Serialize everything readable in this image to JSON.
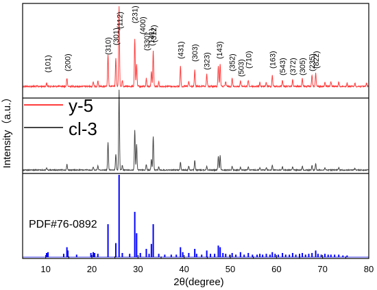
{
  "chart_data": {
    "type": "line",
    "xlabel": "2θ(degree)",
    "ylabel": "Intensity（a.u.）",
    "xlim": [
      5,
      80
    ],
    "xticks": [
      10,
      20,
      30,
      40,
      50,
      60,
      70,
      80
    ],
    "grid": false,
    "legend": {
      "position": "center-left",
      "entries": [
        "y-5",
        "cl-3"
      ]
    },
    "series": [
      {
        "name": "y-5",
        "color": "#ff3b3b",
        "peaks": [
          [
            10.2,
            0.04
          ],
          [
            14.6,
            0.1
          ],
          [
            20.3,
            0.06
          ],
          [
            21.3,
            0.07
          ],
          [
            23.5,
            0.4
          ],
          [
            25.2,
            0.36
          ],
          [
            25.9,
            1.0
          ],
          [
            26.6,
            0.08
          ],
          [
            29.3,
            0.6
          ],
          [
            29.7,
            0.28
          ],
          [
            31.8,
            0.1
          ],
          [
            32.9,
            0.18
          ],
          [
            33.3,
            0.44
          ],
          [
            34.5,
            0.06
          ],
          [
            39.2,
            0.25
          ],
          [
            41.0,
            0.06
          ],
          [
            42.3,
            0.2
          ],
          [
            44.9,
            0.15
          ],
          [
            47.4,
            0.26
          ],
          [
            47.8,
            0.28
          ],
          [
            49.0,
            0.06
          ],
          [
            50.4,
            0.1
          ],
          [
            52.2,
            0.07
          ],
          [
            53.9,
            0.08
          ],
          [
            56.4,
            0.05
          ],
          [
            57.8,
            0.05
          ],
          [
            59.1,
            0.14
          ],
          [
            61.3,
            0.08
          ],
          [
            63.5,
            0.08
          ],
          [
            65.6,
            0.1
          ],
          [
            67.7,
            0.14
          ],
          [
            68.5,
            0.16
          ],
          [
            70.5,
            0.06
          ],
          [
            71.8,
            0.06
          ],
          [
            73.5,
            0.05
          ],
          [
            75.3,
            0.04
          ],
          [
            77.0,
            0.04
          ],
          [
            79.5,
            0.04
          ]
        ],
        "labels": [
          {
            "hkl": "101",
            "x": 10.4
          },
          {
            "hkl": "200",
            "x": 14.7
          },
          {
            "hkl": "310",
            "x": 23.5
          },
          {
            "hkl": "301",
            "x": 25.2
          },
          {
            "hkl": "112",
            "x": 26.0
          },
          {
            "hkl": "231",
            "x": 29.3
          },
          {
            "hkl": "400",
            "x": 31.0
          },
          {
            "hkl": "330",
            "x": 31.9
          },
          {
            "hkl": "141",
            "x": 32.9
          },
          {
            "hkl": "312",
            "x": 33.4
          },
          {
            "hkl": "431",
            "x": 39.2
          },
          {
            "hkl": "303",
            "x": 42.3
          },
          {
            "hkl": "323",
            "x": 44.9
          },
          {
            "hkl": "143",
            "x": 47.6
          },
          {
            "hkl": "352",
            "x": 50.4
          },
          {
            "hkl": "503",
            "x": 52.3
          },
          {
            "hkl": "710",
            "x": 53.9
          },
          {
            "hkl": "163",
            "x": 59.1
          },
          {
            "hkl": "543",
            "x": 61.3
          },
          {
            "hkl": "372",
            "x": 63.5
          },
          {
            "hkl": "305",
            "x": 65.6
          },
          {
            "hkl": "235",
            "x": 67.7
          },
          {
            "hkl": "822",
            "x": 68.6
          }
        ]
      },
      {
        "name": "cl-3",
        "color": "#444444",
        "peaks": [
          [
            10.2,
            0.03
          ],
          [
            14.6,
            0.07
          ],
          [
            20.3,
            0.04
          ],
          [
            21.3,
            0.05
          ],
          [
            23.5,
            0.35
          ],
          [
            25.2,
            0.2
          ],
          [
            25.9,
            1.0
          ],
          [
            26.6,
            0.06
          ],
          [
            29.3,
            0.5
          ],
          [
            29.7,
            0.32
          ],
          [
            31.8,
            0.07
          ],
          [
            32.9,
            0.14
          ],
          [
            33.3,
            0.42
          ],
          [
            34.5,
            0.04
          ],
          [
            39.2,
            0.1
          ],
          [
            41.0,
            0.05
          ],
          [
            42.3,
            0.12
          ],
          [
            44.9,
            0.05
          ],
          [
            47.4,
            0.17
          ],
          [
            47.8,
            0.18
          ],
          [
            50.4,
            0.05
          ],
          [
            52.2,
            0.04
          ],
          [
            53.9,
            0.04
          ],
          [
            56.4,
            0.03
          ],
          [
            57.8,
            0.03
          ],
          [
            59.1,
            0.06
          ],
          [
            61.3,
            0.04
          ],
          [
            63.5,
            0.04
          ],
          [
            65.6,
            0.05
          ],
          [
            67.7,
            0.06
          ],
          [
            68.5,
            0.08
          ],
          [
            70.5,
            0.03
          ],
          [
            73.5,
            0.03
          ],
          [
            77.0,
            0.02
          ]
        ]
      },
      {
        "name": "PDF#76-0892",
        "color": "#0000ff",
        "sticks": [
          [
            10.2,
            0.05
          ],
          [
            10.5,
            0.06
          ],
          [
            13.9,
            0.04
          ],
          [
            14.6,
            0.12
          ],
          [
            14.8,
            0.08
          ],
          [
            16.7,
            0.03
          ],
          [
            19.8,
            0.05
          ],
          [
            20.3,
            0.06
          ],
          [
            20.6,
            0.05
          ],
          [
            21.3,
            0.04
          ],
          [
            23.5,
            0.4
          ],
          [
            25.2,
            0.17
          ],
          [
            25.9,
            1.0
          ],
          [
            26.6,
            0.05
          ],
          [
            28.2,
            0.04
          ],
          [
            29.3,
            0.55
          ],
          [
            29.7,
            0.29
          ],
          [
            30.5,
            0.05
          ],
          [
            31.8,
            0.1
          ],
          [
            32.4,
            0.04
          ],
          [
            32.9,
            0.16
          ],
          [
            33.3,
            0.4
          ],
          [
            34.5,
            0.04
          ],
          [
            35.8,
            0.03
          ],
          [
            37.2,
            0.03
          ],
          [
            38.3,
            0.03
          ],
          [
            39.2,
            0.12
          ],
          [
            39.7,
            0.06
          ],
          [
            41.0,
            0.05
          ],
          [
            42.3,
            0.1
          ],
          [
            42.7,
            0.04
          ],
          [
            43.8,
            0.03
          ],
          [
            44.9,
            0.08
          ],
          [
            45.7,
            0.04
          ],
          [
            46.6,
            0.04
          ],
          [
            47.4,
            0.14
          ],
          [
            47.8,
            0.12
          ],
          [
            48.4,
            0.05
          ],
          [
            49.0,
            0.04
          ],
          [
            49.9,
            0.03
          ],
          [
            50.4,
            0.05
          ],
          [
            51.2,
            0.03
          ],
          [
            52.2,
            0.06
          ],
          [
            53.0,
            0.03
          ],
          [
            53.9,
            0.05
          ],
          [
            54.8,
            0.03
          ],
          [
            55.8,
            0.03
          ],
          [
            56.4,
            0.04
          ],
          [
            57.0,
            0.03
          ],
          [
            57.8,
            0.04
          ],
          [
            58.6,
            0.03
          ],
          [
            59.1,
            0.06
          ],
          [
            59.7,
            0.04
          ],
          [
            60.4,
            0.03
          ],
          [
            61.3,
            0.05
          ],
          [
            62.0,
            0.03
          ],
          [
            62.8,
            0.03
          ],
          [
            63.5,
            0.05
          ],
          [
            64.2,
            0.03
          ],
          [
            65.0,
            0.04
          ],
          [
            65.6,
            0.05
          ],
          [
            66.3,
            0.03
          ],
          [
            67.0,
            0.04
          ],
          [
            67.7,
            0.05
          ],
          [
            68.5,
            0.08
          ],
          [
            69.0,
            0.04
          ],
          [
            69.7,
            0.03
          ],
          [
            70.5,
            0.04
          ],
          [
            71.2,
            0.03
          ],
          [
            71.8,
            0.03
          ],
          [
            72.6,
            0.03
          ],
          [
            73.5,
            0.03
          ],
          [
            74.4,
            0.02
          ],
          [
            75.3,
            0.02
          ]
        ]
      }
    ],
    "legend_labels": {
      "y5": "y-5",
      "cl3": "cl-3",
      "ref": "PDF#76-0892"
    }
  }
}
